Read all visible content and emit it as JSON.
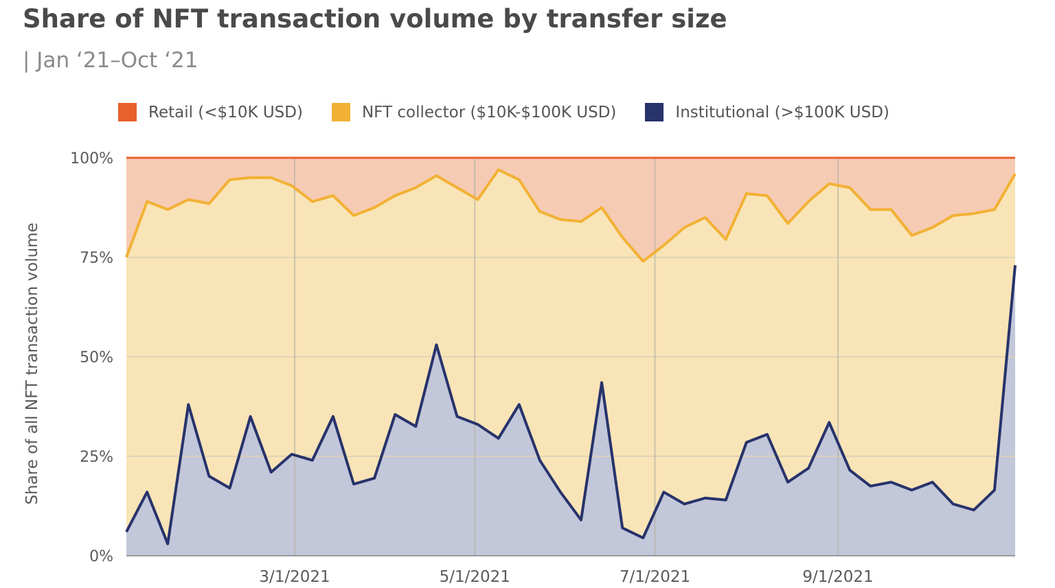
{
  "title": "Share of NFT transaction volume by transfer size",
  "subtitle": "| Jan ‘21–Oct ‘21",
  "legend": [
    {
      "label": "Retail (<$10K USD)",
      "color": "#e8602c"
    },
    {
      "label": "NFT collector ($10K-$100K USD)",
      "color": "#f2b134"
    },
    {
      "label": "Institutional (>$100K USD)",
      "color": "#27336b"
    }
  ],
  "chart_data": {
    "type": "area",
    "ylabel": "Share of all NFT transaction volume",
    "xlabel": "",
    "ylim": [
      0,
      100
    ],
    "y_ticks": [
      "0%",
      "25%",
      "50%",
      "75%",
      "100%"
    ],
    "x_ticks": [
      "3/1/2021",
      "5/1/2021",
      "7/1/2021",
      "9/1/2021"
    ],
    "grid": true,
    "stacked": true,
    "colors": {
      "retail_fill": "#f6cbb4",
      "collector_fill": "#f9e4b7",
      "institutional_fill": "#c3c7da",
      "collector_line": "#f2b134",
      "institutional_line": "#27336b",
      "retail_line": "#e8602c",
      "grid": "#ddd2b6"
    },
    "x": [
      "2021-01-03",
      "2021-01-10",
      "2021-01-17",
      "2021-01-24",
      "2021-01-31",
      "2021-02-07",
      "2021-02-14",
      "2021-02-21",
      "2021-02-28",
      "2021-03-07",
      "2021-03-14",
      "2021-03-21",
      "2021-03-28",
      "2021-04-04",
      "2021-04-11",
      "2021-04-18",
      "2021-04-25",
      "2021-05-02",
      "2021-05-09",
      "2021-05-16",
      "2021-05-23",
      "2021-05-30",
      "2021-06-06",
      "2021-06-13",
      "2021-06-20",
      "2021-06-27",
      "2021-07-04",
      "2021-07-11",
      "2021-07-18",
      "2021-07-25",
      "2021-08-01",
      "2021-08-08",
      "2021-08-15",
      "2021-08-22",
      "2021-08-29",
      "2021-09-05",
      "2021-09-12",
      "2021-09-19",
      "2021-09-26",
      "2021-10-03",
      "2021-10-10",
      "2021-10-17",
      "2021-10-24",
      "2021-10-31"
    ],
    "series": [
      {
        "name": "Institutional (>$100K USD)",
        "values": [
          6,
          16,
          3,
          38,
          20,
          17,
          35,
          21,
          25.5,
          24,
          35,
          18,
          19.5,
          35.5,
          32.5,
          53,
          35,
          33,
          29.5,
          38,
          24,
          16,
          9,
          43.5,
          7,
          4.5,
          16,
          13,
          14.5,
          14,
          28.5,
          30.5,
          18.5,
          22,
          33.5,
          21.5,
          17.5,
          18.5,
          16.5,
          18.5,
          13,
          11.5,
          16.5,
          73
        ]
      },
      {
        "name": "NFT collector ($10K-$100K USD)",
        "values": [
          75,
          89,
          87,
          89.5,
          88.5,
          94.5,
          95,
          95,
          93,
          89,
          90.5,
          85.5,
          87.5,
          90.5,
          92.5,
          95.5,
          92.5,
          89.5,
          97,
          94.5,
          86.5,
          84.5,
          84,
          87.5,
          80,
          74,
          78,
          82.5,
          85,
          79.5,
          91,
          90.5,
          83.5,
          89,
          93.5,
          92.5,
          87,
          87,
          80.5,
          82.5,
          85.5,
          86,
          87,
          96
        ]
      },
      {
        "name": "Retail (<$10K USD)",
        "values": [
          100,
          100,
          100,
          100,
          100,
          100,
          100,
          100,
          100,
          100,
          100,
          100,
          100,
          100,
          100,
          100,
          100,
          100,
          100,
          100,
          100,
          100,
          100,
          100,
          100,
          100,
          100,
          100,
          100,
          100,
          100,
          100,
          100,
          100,
          100,
          100,
          100,
          100,
          100,
          100,
          100,
          100,
          100,
          100
        ]
      }
    ]
  }
}
